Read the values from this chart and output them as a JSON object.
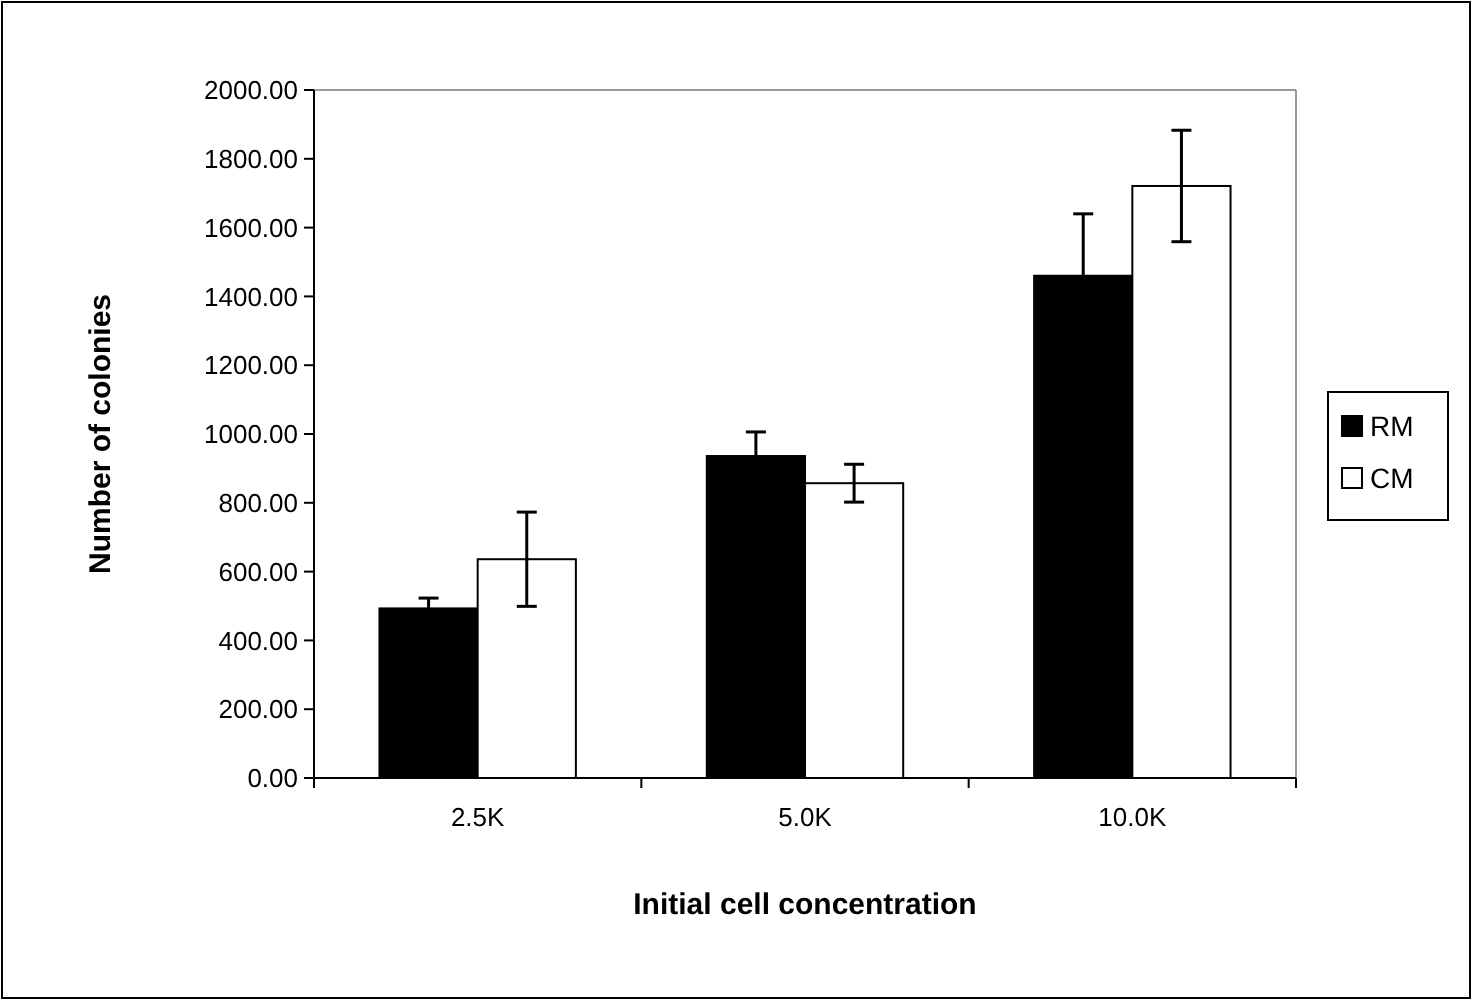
{
  "chart_data": {
    "type": "bar",
    "xlabel": "Initial cell concentration",
    "ylabel": "Number of colonies",
    "categories": [
      "2.5K",
      "5.0K",
      "10.0K"
    ],
    "series": [
      {
        "name": "RM",
        "color": "#000000",
        "values": [
          493,
          936,
          1460
        ],
        "errors": [
          30,
          70,
          180
        ]
      },
      {
        "name": "CM",
        "color": "#ffffff",
        "values": [
          636,
          857,
          1721
        ],
        "errors": [
          137,
          55,
          162
        ]
      }
    ],
    "ylim": [
      0,
      2000
    ],
    "yticks": [
      {
        "value": 0,
        "label": "0.00"
      },
      {
        "value": 200,
        "label": "200.00"
      },
      {
        "value": 400,
        "label": "400.00"
      },
      {
        "value": 600,
        "label": "600.00"
      },
      {
        "value": 800,
        "label": "800.00"
      },
      {
        "value": 1000,
        "label": "1000.00"
      },
      {
        "value": 1200,
        "label": "1200.00"
      },
      {
        "value": 1400,
        "label": "1400.00"
      },
      {
        "value": 1600,
        "label": "1600.00"
      },
      {
        "value": 1800,
        "label": "1800.00"
      },
      {
        "value": 2000,
        "label": "2000.00"
      }
    ],
    "legend": "right",
    "grid": false
  }
}
